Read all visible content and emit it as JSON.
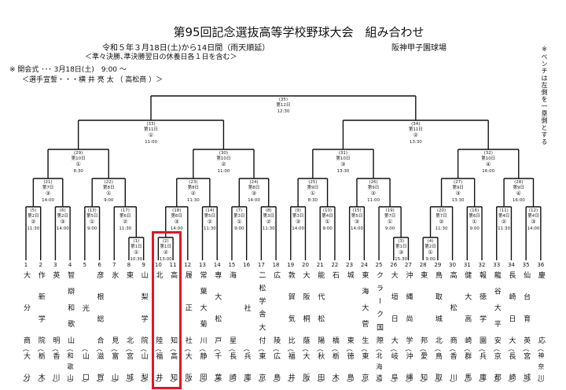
{
  "header": {
    "title": "第95回記念選抜高等学校野球大会　組み合わせ",
    "dates": "令和５年３月18日(土)から14日間（雨天順延）",
    "venue": "阪神甲子園球場",
    "note": "＜準々決勝､準決勝翌日の休養日各１日を含む＞",
    "ceremony": "※ 開会式 ･･･ 3月18日(土)　9:00 ～",
    "oath": "＜選手宣誓・・・横 井 亮 太 （ 高松商 ）＞",
    "bench_note": "※ベンチは左側を一塁側とする"
  },
  "highlight": {
    "teams": [
      10,
      11
    ],
    "color": "#e8141e"
  },
  "teams": [
    {
      "no": "1",
      "name": "大分商",
      "pref": "大分"
    },
    {
      "no": "2",
      "name": "作新学院",
      "pref": "栃木"
    },
    {
      "no": "3",
      "name": "英明",
      "pref": "香川"
    },
    {
      "no": "4",
      "name": "智辯和歌山",
      "pref": "和歌山"
    },
    {
      "no": "5",
      "name": "光",
      "pref": "山口"
    },
    {
      "no": "6",
      "name": "彦根総合",
      "pref": "滋賀"
    },
    {
      "no": "7",
      "name": "氷見",
      "pref": "富山"
    },
    {
      "no": "8",
      "name": "東北",
      "pref": "宮城"
    },
    {
      "no": "9",
      "name": "山梨学院",
      "pref": "山梨"
    },
    {
      "no": "10",
      "name": "北陸",
      "pref": "福井"
    },
    {
      "no": "11",
      "name": "高知",
      "pref": "高知"
    },
    {
      "no": "12",
      "name": "履正社",
      "pref": "大阪"
    },
    {
      "no": "13",
      "name": "常葉大菊川",
      "pref": "静岡"
    },
    {
      "no": "14",
      "name": "専大松戸",
      "pref": "千葉"
    },
    {
      "no": "15",
      "name": "海星",
      "pref": "長崎"
    },
    {
      "no": "16",
      "name": "社",
      "pref": "兵庫"
    },
    {
      "no": "17",
      "name": "二松学舎大付",
      "pref": "東京"
    },
    {
      "no": "18",
      "name": "広陵",
      "pref": "広島"
    },
    {
      "no": "19",
      "name": "敦賀気比",
      "pref": "福井"
    },
    {
      "no": "20",
      "name": "大阪桐蔭",
      "pref": "大阪"
    },
    {
      "no": "21",
      "name": "能代松陽",
      "pref": "秋田"
    },
    {
      "no": "22",
      "name": "石橋",
      "pref": "栃木"
    },
    {
      "no": "23",
      "name": "城東",
      "pref": "徳島"
    },
    {
      "no": "24",
      "name": "東海大菅生",
      "pref": "東京"
    },
    {
      "no": "25",
      "name": "クラーク国際",
      "pref": "北海道"
    },
    {
      "no": "26",
      "name": "大垣日大",
      "pref": "岐阜"
    },
    {
      "no": "27",
      "name": "沖縄尚学",
      "pref": "沖縄"
    },
    {
      "no": "28",
      "name": "東邦",
      "pref": "愛知"
    },
    {
      "no": "29",
      "name": "鳥取城北",
      "pref": "鳥取"
    },
    {
      "no": "30",
      "name": "高松商",
      "pref": "香川"
    },
    {
      "no": "31",
      "name": "健大高崎",
      "pref": "群馬"
    },
    {
      "no": "32",
      "name": "報徳学園",
      "pref": "兵庫"
    },
    {
      "no": "33",
      "name": "龍谷大平安",
      "pref": "京都"
    },
    {
      "no": "34",
      "name": "長崎日大",
      "pref": "長崎"
    },
    {
      "no": "35",
      "name": "仙台育英",
      "pref": "宮城"
    },
    {
      "no": "36",
      "name": "慶応",
      "pref": "神奈川"
    }
  ],
  "matches": [
    {
      "id": "(1)",
      "a": "t8",
      "b": "t9",
      "day": "第1日",
      "slot": "①",
      "time": "10:30"
    },
    {
      "id": "(2)",
      "a": "t10",
      "b": "t11",
      "day": "第1日",
      "slot": "②",
      "time": "13:00"
    },
    {
      "id": "(3)",
      "a": "t26",
      "b": "t27",
      "day": "第1日",
      "slot": "③",
      "time": "15:30"
    },
    {
      "id": "(4)",
      "a": "t28",
      "b": "t29",
      "day": "第2日",
      "slot": "①",
      "time": "9:00"
    },
    {
      "id": "(5)",
      "a": "t1",
      "b": "t2",
      "day": "第2日",
      "slot": "②",
      "time": "11:30"
    },
    {
      "id": "(6)",
      "a": "t3",
      "b": "t4",
      "day": "第2日",
      "slot": "③",
      "time": "14:00"
    },
    {
      "id": "(7)",
      "a": "t15",
      "b": "t16",
      "day": "第3日",
      "slot": "①",
      "time": "9:00"
    },
    {
      "id": "(8)",
      "a": "t17",
      "b": "t18",
      "day": "第3日",
      "slot": "②",
      "time": "11:30"
    },
    {
      "id": "(9)",
      "a": "t19",
      "b": "t20",
      "day": "第3日",
      "slot": "③",
      "time": "14:00"
    },
    {
      "id": "(10)",
      "a": "t21",
      "b": "t22",
      "day": "第4日",
      "slot": "①",
      "time": "9:00"
    },
    {
      "id": "(11)",
      "a": "t33",
      "b": "t34",
      "day": "第4日",
      "slot": "②",
      "time": "11:30"
    },
    {
      "id": "(12)",
      "a": "t35",
      "b": "t36",
      "day": "第4日",
      "slot": "③",
      "time": "14:00"
    },
    {
      "id": "(13)",
      "a": "t5",
      "b": "t6",
      "day": "第5日",
      "slot": "①",
      "time": "9:00"
    },
    {
      "id": "(14)",
      "a": "t13",
      "b": "t14",
      "day": "第5日",
      "slot": "②",
      "time": "11:30"
    },
    {
      "id": "(15)",
      "a": "t23",
      "b": "t24",
      "day": "第5日",
      "slot": "③",
      "time": "14:00"
    },
    {
      "id": "(16)",
      "a": "t31",
      "b": "t32",
      "day": "第6日",
      "slot": "①",
      "time": "9:00"
    },
    {
      "id": "(17)",
      "a": "t7",
      "b": "g1",
      "day": "第6日",
      "slot": "②",
      "time": "11:30"
    },
    {
      "id": "(18)",
      "a": "g2",
      "b": "t12",
      "day": "第6日",
      "slot": "③",
      "time": "14:00"
    },
    {
      "id": "(19)",
      "a": "t25",
      "b": "g3",
      "day": "第7日",
      "slot": "①",
      "time": "9:00"
    },
    {
      "id": "(20)",
      "a": "g4",
      "b": "t30",
      "day": "第7日",
      "slot": "②",
      "time": "11:30"
    },
    {
      "id": "(21)",
      "a": "g5",
      "b": "g6",
      "day": "第7日",
      "slot": "③",
      "time": "14:00"
    },
    {
      "id": "(22)",
      "a": "g13",
      "b": "g17",
      "day": "第8日",
      "slot": "①",
      "time": "9:00"
    },
    {
      "id": "(23)",
      "a": "g18",
      "b": "g14",
      "day": "第8日",
      "slot": "②",
      "time": "11:30"
    },
    {
      "id": "(24)",
      "a": "g7",
      "b": "g8",
      "day": "第8日",
      "slot": "③",
      "time": "14:00"
    },
    {
      "id": "(25)",
      "a": "g9",
      "b": "g10",
      "day": "第9日",
      "slot": "①",
      "time": "8:30"
    },
    {
      "id": "(26)",
      "a": "g15",
      "b": "g19",
      "day": "第9日",
      "slot": "②",
      "time": "11:00"
    },
    {
      "id": "(27)",
      "a": "g20",
      "b": "g16",
      "day": "第9日",
      "slot": "③",
      "time": "13:30"
    },
    {
      "id": "(28)",
      "a": "g11",
      "b": "g12",
      "day": "第9日",
      "slot": "④",
      "time": "16:00"
    },
    {
      "id": "(29)",
      "a": "g21",
      "b": "g22",
      "day": "第10日",
      "slot": "①",
      "time": "8:30"
    },
    {
      "id": "(30)",
      "a": "g23",
      "b": "g24",
      "day": "第10日",
      "slot": "②",
      "time": "11:00"
    },
    {
      "id": "(31)",
      "a": "g25",
      "b": "g26",
      "day": "第10日",
      "slot": "③",
      "time": "13:30"
    },
    {
      "id": "(32)",
      "a": "g27",
      "b": "g28",
      "day": "第10日",
      "slot": "④",
      "time": "16:00"
    },
    {
      "id": "(33)",
      "a": "g29",
      "b": "g30",
      "day": "第11日",
      "slot": "①",
      "time": "11:00"
    },
    {
      "id": "(34)",
      "a": "g31",
      "b": "g32",
      "day": "第11日",
      "slot": "②",
      "time": "13:30"
    },
    {
      "id": "(35)",
      "a": "g33",
      "b": "g34",
      "day": "第12日",
      "slot": "",
      "time": "12:30"
    }
  ]
}
